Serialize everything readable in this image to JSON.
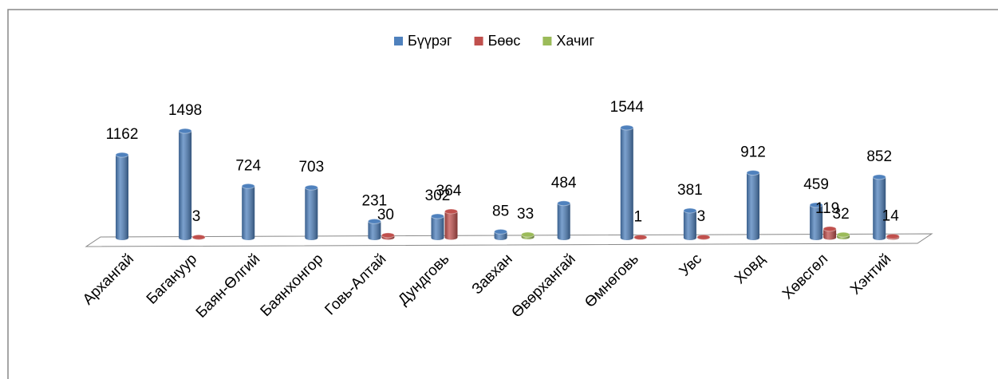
{
  "chart_data": {
    "type": "bar3d",
    "categories": [
      "Архангай",
      "Багануур",
      "Баян-Өлгий",
      "Баянхонгор",
      "Говь-Алтай",
      "Дундговь",
      "Завхан",
      "Өвөрхангай",
      "Өмнөговь",
      "Увс",
      "Ховд",
      "Хөвсгөл",
      "Хэнтий"
    ],
    "series": [
      {
        "name": "Бүүрэг",
        "color": "#4f81bd",
        "values": [
          1162,
          1498,
          724,
          703,
          231,
          302,
          85,
          484,
          1544,
          381,
          912,
          459,
          852
        ]
      },
      {
        "name": "Бөөс",
        "color": "#c0504d",
        "values": [
          null,
          3,
          null,
          null,
          30,
          364,
          null,
          null,
          1,
          3,
          null,
          119,
          14
        ]
      },
      {
        "name": "Хачиг",
        "color": "#9bbb59",
        "values": [
          null,
          null,
          null,
          null,
          null,
          null,
          33,
          null,
          null,
          null,
          null,
          32,
          null
        ]
      }
    ],
    "legend": "top"
  }
}
